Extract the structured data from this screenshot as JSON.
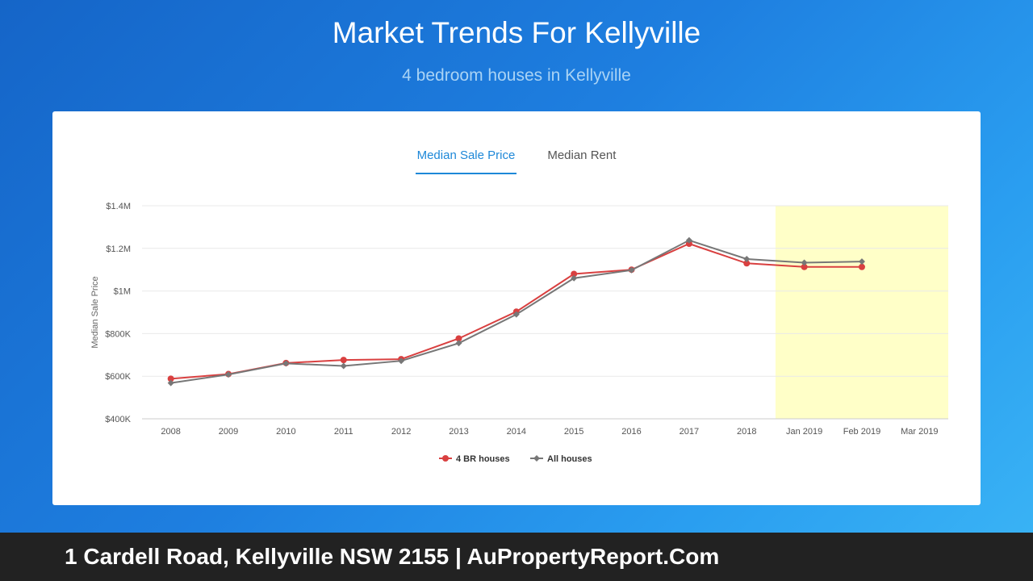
{
  "header": {
    "title": "Market Trends For Kellyville",
    "subtitle": "4 bedroom houses in Kellyville"
  },
  "tabs": [
    {
      "label": "Median Sale Price",
      "active": true
    },
    {
      "label": "Median Rent",
      "active": false
    }
  ],
  "chart_data": {
    "type": "line",
    "ylabel": "Median Sale Price",
    "ylim": [
      400000,
      1400000
    ],
    "y_ticks": [
      {
        "value": 400000,
        "label": "$400K"
      },
      {
        "value": 600000,
        "label": "$600K"
      },
      {
        "value": 800000,
        "label": "$800K"
      },
      {
        "value": 1000000,
        "label": "$1M"
      },
      {
        "value": 1200000,
        "label": "$1.2M"
      },
      {
        "value": 1400000,
        "label": "$1.4M"
      }
    ],
    "categories": [
      "2008",
      "2009",
      "2010",
      "2011",
      "2012",
      "2013",
      "2014",
      "2015",
      "2016",
      "2017",
      "2018",
      "Jan 2019",
      "Feb 2019",
      "Mar 2019"
    ],
    "highlight_range": [
      "Jan 2019",
      "Mar 2019"
    ],
    "highlight_color": "#ffffc8",
    "grid": true,
    "legend_position": "bottom-center",
    "series": [
      {
        "name": "4 BR houses",
        "color": "#d94040",
        "marker": "circle",
        "values": [
          588000,
          610000,
          662000,
          676000,
          680000,
          777000,
          903000,
          1080000,
          1100000,
          1222000,
          1130000,
          1113000,
          1113000,
          null
        ]
      },
      {
        "name": "All houses",
        "color": "#777777",
        "marker": "diamond",
        "values": [
          568000,
          608000,
          660000,
          648000,
          672000,
          755000,
          890000,
          1060000,
          1098000,
          1238000,
          1150000,
          1133000,
          1138000,
          null
        ]
      }
    ]
  },
  "footer": {
    "text": "1 Cardell Road, Kellyville NSW 2155 | AuPropertyReport.Com"
  }
}
